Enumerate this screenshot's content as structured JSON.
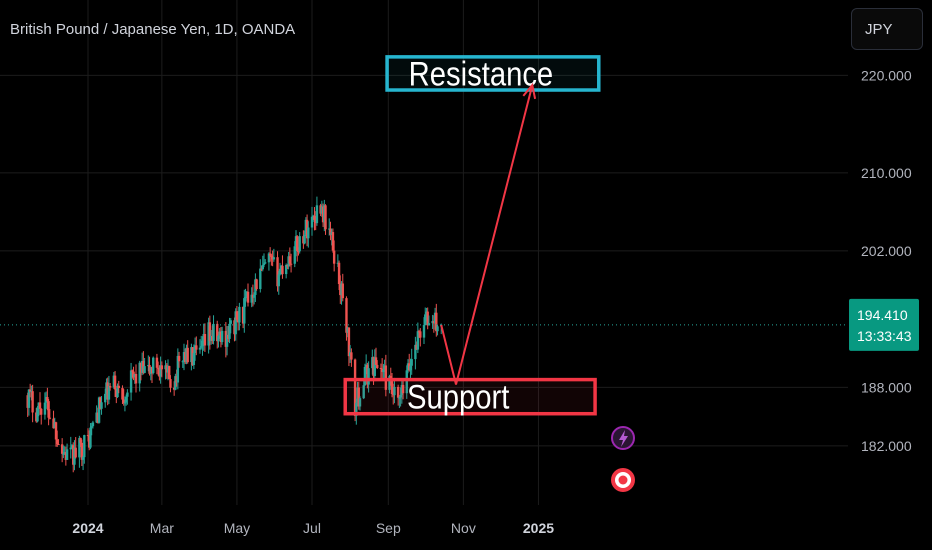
{
  "header": {
    "title": "British Pound / Japanese Yen, 1D, OANDA",
    "currency_button": "JPY"
  },
  "colors": {
    "up": "#26a69a",
    "down": "#ef5350",
    "resistance": "#26b5cf",
    "support": "#f23645",
    "arrow": "#f23645",
    "price_badge": "#089981",
    "grid": "#1c1c1c",
    "flash_icon": "#9c27b0",
    "record_icon": "#f23645"
  },
  "price_badge": {
    "price": "194.410",
    "countdown": "13:33:43"
  },
  "chart_data": {
    "type": "candlestick",
    "title": "British Pound / Japanese Yen, 1D, OANDA",
    "x_tick_labels": [
      "2024",
      "Mar",
      "May",
      "Jul",
      "Sep",
      "Nov",
      "2025"
    ],
    "y_tick_labels": [
      "220.000",
      "210.000",
      "202.000",
      "188.000",
      "182.000"
    ],
    "y_ticks": [
      220,
      210,
      202,
      188,
      182
    ],
    "last_price": 194.41,
    "grid": true,
    "price_path": [
      [
        "2023-11-13",
        187.2
      ],
      [
        "2023-11-20",
        185.8
      ],
      [
        "2023-11-27",
        186.5
      ],
      [
        "2023-12-04",
        184.5
      ],
      [
        "2023-12-11",
        181.5
      ],
      [
        "2023-12-18",
        180.8
      ],
      [
        "2023-12-25",
        181.6
      ],
      [
        "2024-01-01",
        182.5
      ],
      [
        "2024-01-08",
        185.3
      ],
      [
        "2024-01-15",
        187.1
      ],
      [
        "2024-01-22",
        188.2
      ],
      [
        "2024-01-29",
        187.2
      ],
      [
        "2024-02-05",
        188.6
      ],
      [
        "2024-02-12",
        189.6
      ],
      [
        "2024-02-19",
        189.5
      ],
      [
        "2024-02-26",
        190.5
      ],
      [
        "2024-03-04",
        189.0
      ],
      [
        "2024-03-11",
        188.8
      ],
      [
        "2024-03-18",
        191.5
      ],
      [
        "2024-03-25",
        191.0
      ],
      [
        "2024-04-01",
        191.2
      ],
      [
        "2024-04-08",
        193.5
      ],
      [
        "2024-04-15",
        193.0
      ],
      [
        "2024-04-22",
        193.3
      ],
      [
        "2024-04-29",
        194.5
      ],
      [
        "2024-05-06",
        195.8
      ],
      [
        "2024-05-13",
        198.0
      ],
      [
        "2024-05-20",
        199.5
      ],
      [
        "2024-05-27",
        200.8
      ],
      [
        "2024-06-03",
        199.6
      ],
      [
        "2024-06-10",
        201.0
      ],
      [
        "2024-06-17",
        202.0
      ],
      [
        "2024-06-24",
        203.8
      ],
      [
        "2024-07-01",
        205.2
      ],
      [
        "2024-07-08",
        206.8
      ],
      [
        "2024-07-15",
        204.0
      ],
      [
        "2024-07-22",
        200.0
      ],
      [
        "2024-07-29",
        194.5
      ],
      [
        "2024-08-05",
        186.0
      ],
      [
        "2024-08-12",
        188.8
      ],
      [
        "2024-08-19",
        190.4
      ],
      [
        "2024-08-26",
        190.1
      ],
      [
        "2024-09-02",
        188.0
      ],
      [
        "2024-09-09",
        186.0
      ],
      [
        "2024-09-16",
        189.0
      ],
      [
        "2024-09-23",
        192.5
      ],
      [
        "2024-09-30",
        194.8
      ],
      [
        "2024-10-07",
        194.8
      ],
      [
        "2024-10-14",
        194.4
      ]
    ],
    "annotations": [
      {
        "type": "zone",
        "label": "Resistance",
        "from": 218.5,
        "to": 221.9,
        "x_start": "2024-08-31",
        "x_end": "2025-02-19"
      },
      {
        "type": "zone",
        "label": "Support",
        "from": 185.3,
        "to": 188.8,
        "x_start": "2024-07-28",
        "x_end": "2025-02-16"
      },
      {
        "type": "arrow",
        "points": [
          [
            "2024-10-14",
            194.4
          ],
          [
            "2024-10-26",
            188.3
          ],
          [
            "2024-12-27",
            219.0
          ]
        ]
      }
    ]
  }
}
